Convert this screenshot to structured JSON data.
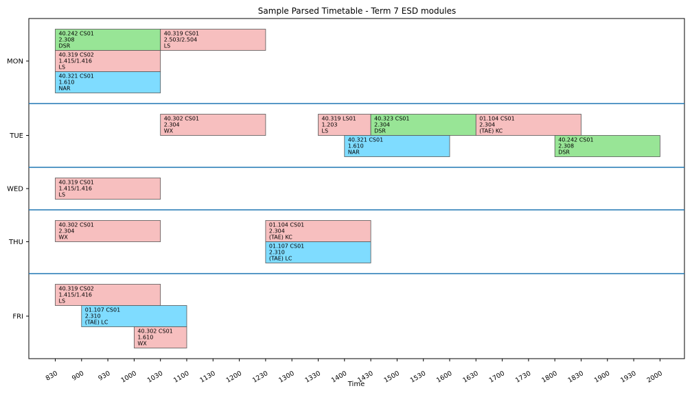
{
  "chart_data": {
    "type": "timeline",
    "title": "Sample Parsed Timetable - Term 7 ESD modules",
    "xlabel": "Time",
    "ylabel": "",
    "ylim": [
      0,
      3
    ],
    "x_ticks": [
      "830",
      "900",
      "930",
      "1000",
      "1030",
      "1100",
      "1130",
      "1200",
      "1230",
      "1300",
      "1330",
      "1400",
      "1430",
      "1500",
      "1530",
      "1600",
      "1630",
      "1700",
      "1730",
      "1800",
      "1830",
      "1900",
      "1930",
      "2000"
    ],
    "colors": {
      "LS": "#f7bfbf",
      "DSR": "#98e596",
      "NAR": "#7fdcff",
      "WX": "#f7bfbf",
      "(TAE) KC": "#f7bfbf",
      "(TAE) LC": "#7fdcff",
      "separator": "#1f77b4"
    },
    "days": [
      {
        "label": "MON",
        "rows": 3
      },
      {
        "label": "TUE",
        "rows": 2
      },
      {
        "label": "WED",
        "rows": 1
      },
      {
        "label": "THU",
        "rows": 2
      },
      {
        "label": "FRI",
        "rows": 3
      }
    ],
    "events": [
      {
        "day": 0,
        "row": 0,
        "start": "0830",
        "end": "1030",
        "lines": [
          "40.242 CS01",
          "2.308",
          "DSR"
        ]
      },
      {
        "day": 0,
        "row": 0,
        "start": "1030",
        "end": "1230",
        "lines": [
          "40.319 CS01",
          "2.503/2.504",
          "LS"
        ]
      },
      {
        "day": 0,
        "row": 1,
        "start": "0830",
        "end": "1030",
        "lines": [
          "40.319 CS02",
          "1.415/1.416",
          "LS"
        ]
      },
      {
        "day": 0,
        "row": 2,
        "start": "0830",
        "end": "1030",
        "lines": [
          "40.321 CS01",
          "1.610",
          "NAR"
        ]
      },
      {
        "day": 1,
        "row": 0,
        "start": "1030",
        "end": "1230",
        "lines": [
          "40.302 CS01",
          "2.304",
          "WX"
        ]
      },
      {
        "day": 1,
        "row": 0,
        "start": "1330",
        "end": "1430",
        "lines": [
          "40.319 LS01",
          "1.203",
          "LS"
        ]
      },
      {
        "day": 1,
        "row": 0,
        "start": "1430",
        "end": "1630",
        "lines": [
          "40.323 CS01",
          "2.304",
          "DSR"
        ]
      },
      {
        "day": 1,
        "row": 0,
        "start": "1630",
        "end": "1830",
        "lines": [
          "01.104 CS01",
          "2.304",
          "(TAE) KC"
        ]
      },
      {
        "day": 1,
        "row": 1,
        "start": "1400",
        "end": "1600",
        "lines": [
          "40.321 CS01",
          "1.610",
          "NAR"
        ]
      },
      {
        "day": 1,
        "row": 1,
        "start": "1800",
        "end": "2000",
        "lines": [
          "40.242 CS01",
          "2.308",
          "DSR"
        ]
      },
      {
        "day": 2,
        "row": 0,
        "start": "0830",
        "end": "1030",
        "lines": [
          "40.319 CS01",
          "1.415/1.416",
          "LS"
        ]
      },
      {
        "day": 3,
        "row": 0,
        "start": "0830",
        "end": "1030",
        "lines": [
          "40.302 CS01",
          "2.304",
          "WX"
        ]
      },
      {
        "day": 3,
        "row": 0,
        "start": "1230",
        "end": "1430",
        "lines": [
          "01.104 CS01",
          "2.304",
          "(TAE) KC"
        ]
      },
      {
        "day": 3,
        "row": 1,
        "start": "1230",
        "end": "1430",
        "lines": [
          "01.107 CS01",
          "2.310",
          "(TAE) LC"
        ]
      },
      {
        "day": 4,
        "row": 0,
        "start": "0830",
        "end": "1030",
        "lines": [
          "40.319 CS02",
          "1.415/1.416",
          "LS"
        ]
      },
      {
        "day": 4,
        "row": 1,
        "start": "0900",
        "end": "1100",
        "lines": [
          "01.107 CS01",
          "2.310",
          "(TAE) LC"
        ]
      },
      {
        "day": 4,
        "row": 2,
        "start": "1000",
        "end": "1100",
        "lines": [
          "40.302 CS01",
          "1.610",
          "WX"
        ]
      }
    ]
  }
}
